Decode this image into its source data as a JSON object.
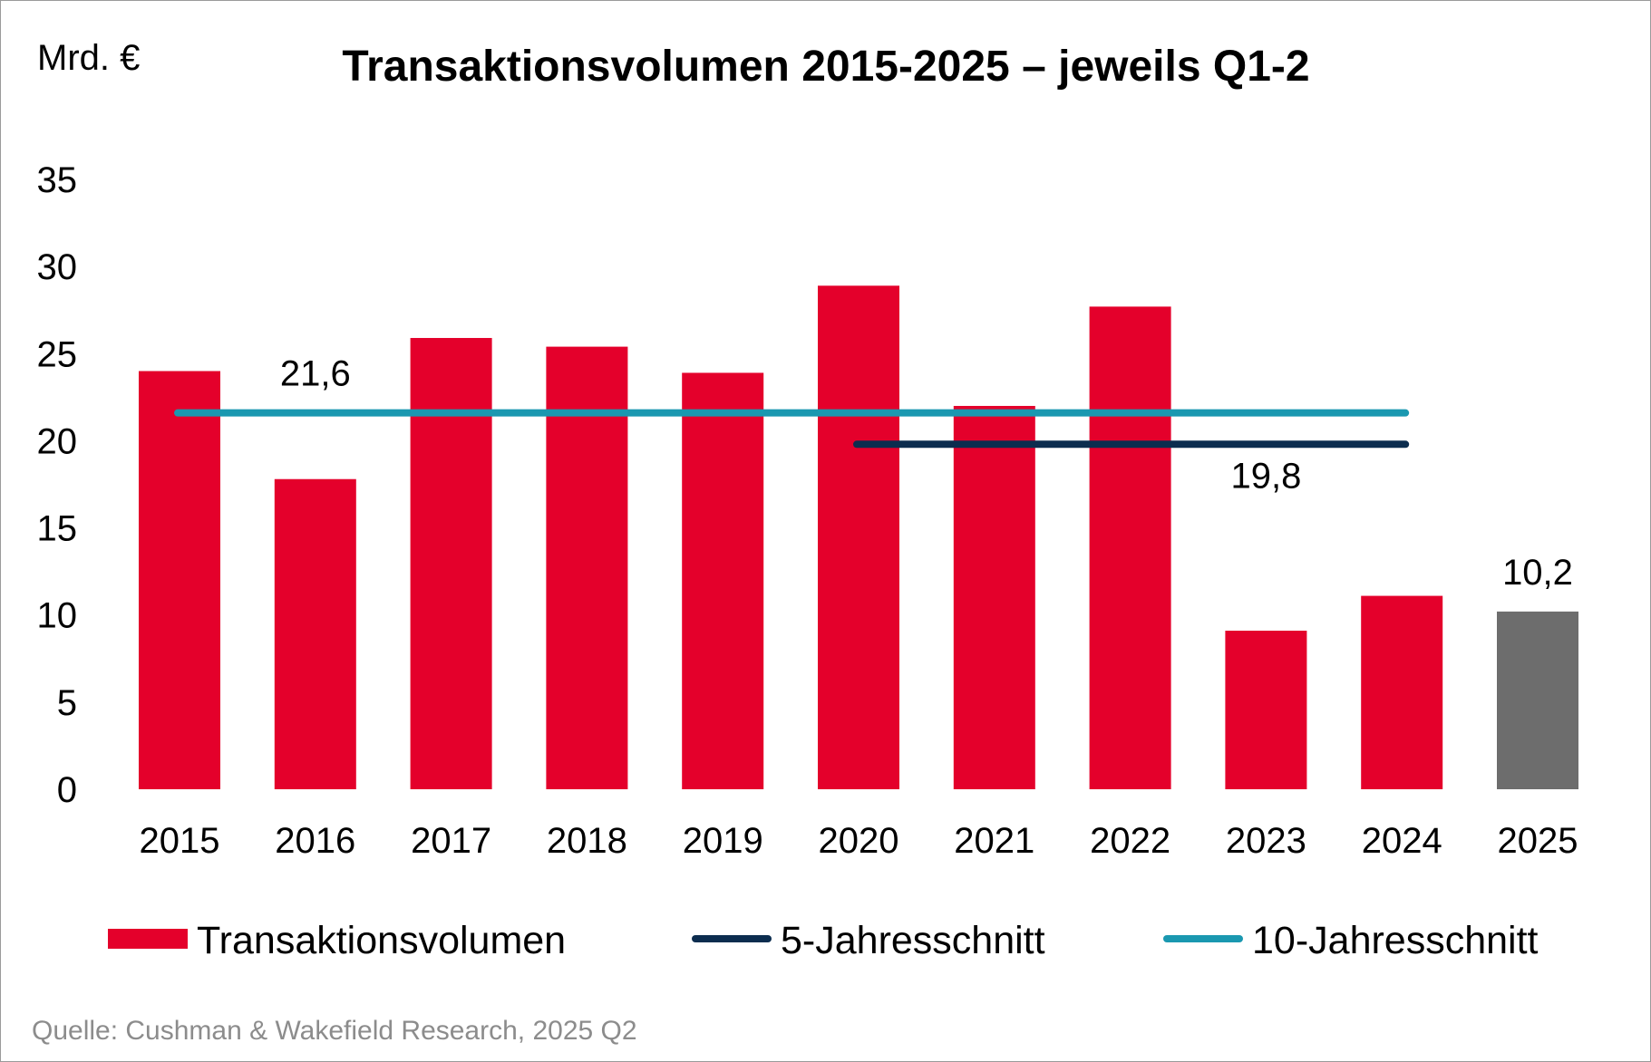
{
  "chart_data": {
    "type": "bar",
    "title": "Transaktionsvolumen 2015-2025 – jeweils Q1-2",
    "ylabel": "Mrd. €",
    "xlabel": "",
    "ylim": [
      0,
      35
    ],
    "yticks": [
      0,
      5,
      10,
      15,
      20,
      25,
      30,
      35
    ],
    "yticklabels": [
      "0",
      "5",
      "10",
      "15",
      "20",
      "25",
      "30",
      "35"
    ],
    "grid": false,
    "legend_position": "bottom",
    "categories": [
      "2015",
      "2016",
      "2017",
      "2018",
      "2019",
      "2020",
      "2021",
      "2022",
      "2023",
      "2024",
      "2025"
    ],
    "series": [
      {
        "name": "Transaktionsvolumen",
        "kind": "bar",
        "values": [
          24.0,
          17.8,
          25.9,
          25.4,
          23.9,
          28.9,
          22.0,
          27.7,
          9.1,
          11.1,
          10.2
        ],
        "color": "#e4002b",
        "highlight_index": 10,
        "highlight_color": "#6d6d6d"
      },
      {
        "name": "5-Jahresschnitt",
        "kind": "line",
        "value": 19.8,
        "from": "2020",
        "to": "2024",
        "color": "#0c2d4f"
      },
      {
        "name": "10-Jahresschnitt",
        "kind": "line",
        "value": 21.6,
        "from": "2015",
        "to": "2024",
        "color": "#1a98b0"
      }
    ],
    "annotations": [
      {
        "text": "21,6",
        "anchor": "2016",
        "value": 21.6,
        "placement": "above"
      },
      {
        "text": "19,8",
        "anchor": "2023",
        "value": 19.8,
        "placement": "below"
      },
      {
        "text": "10,2",
        "anchor": "2025",
        "value": 10.2,
        "placement": "above"
      }
    ],
    "source": "Quelle: Cushman & Wakefield Research, 2025 Q2"
  }
}
